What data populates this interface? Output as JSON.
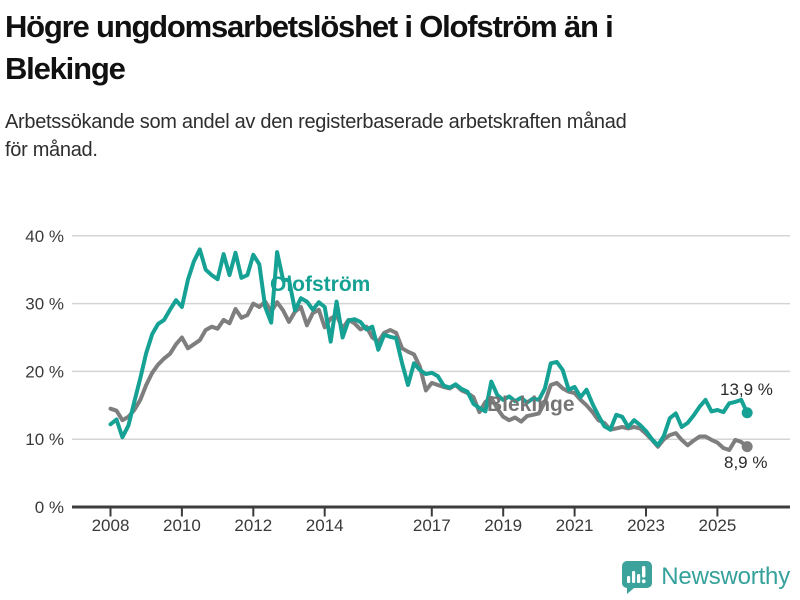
{
  "title": {
    "lines": [
      "Högre ungdomsarbetslöshet i Olofström än i",
      "Blekinge"
    ]
  },
  "subtitle": {
    "lines": [
      "Arbetssökande som andel av den registerbaserade arbetskraften månad",
      "för månad."
    ]
  },
  "footer": {
    "brand": "Newsworthy",
    "logo_icon": "newsworthy-speech-bubble-bar-chart-icon"
  },
  "colors": {
    "olofstrom_line": "#16A195",
    "blekinge_line": "#7E7E7E",
    "blekinge_label": "#757575",
    "grid": "#D4D4D4",
    "axis": "#3C3C3C",
    "tick_text": "#3A3A3A",
    "value_label_text": "#2B2B2B",
    "brand_teal": "#35A19B"
  },
  "chart_data": {
    "type": "line",
    "title": "Högre ungdomsarbetslöshet i Olofström än i Blekinge",
    "xlabel": "",
    "ylabel": "Arbetssökande som andel av den registerbaserade arbetskraften (%)",
    "x_start_year": 2008.0,
    "x_interval_years": 0.16667,
    "x_end_year": 2025.83,
    "ylim": [
      0,
      44
    ],
    "grid": "horizontal",
    "legend": "inline-series-labels",
    "y_ticks": [
      {
        "label": "0 %",
        "value": 0
      },
      {
        "label": "10 %",
        "value": 10
      },
      {
        "label": "20 %",
        "value": 20
      },
      {
        "label": "30 %",
        "value": 30
      },
      {
        "label": "40 %",
        "value": 40
      }
    ],
    "x_ticks": [
      {
        "label": "2008",
        "year": 2008
      },
      {
        "label": "2010",
        "year": 2010
      },
      {
        "label": "2012",
        "year": 2012
      },
      {
        "label": "2014",
        "year": 2014
      },
      {
        "label": "2017",
        "year": 2017
      },
      {
        "label": "2019",
        "year": 2019
      },
      {
        "label": "2021",
        "year": 2021
      },
      {
        "label": "2023",
        "year": 2023
      },
      {
        "label": "2025",
        "year": 2025
      }
    ],
    "series": [
      {
        "id": "olofstrom",
        "name": "Olofström",
        "color": "#16A195",
        "end_label": "13,9 %",
        "end_value": 13.9,
        "values": [
          12.2,
          12.9,
          10.3,
          12.0,
          15.5,
          19.0,
          22.7,
          25.5,
          27.0,
          27.6,
          29.1,
          30.5,
          29.5,
          33.5,
          36.2,
          38.0,
          35.0,
          34.2,
          33.6,
          37.3,
          34.2,
          37.5,
          33.8,
          34.2,
          37.2,
          35.8,
          29.5,
          27.2,
          37.6,
          33.5,
          33.5,
          29.0,
          30.8,
          30.3,
          29.1,
          30.2,
          29.5,
          24.4,
          30.3,
          25.0,
          27.5,
          27.7,
          27.3,
          26.2,
          26.6,
          23.2,
          25.4,
          25.1,
          24.9,
          21.2,
          18.0,
          21.2,
          20.2,
          19.6,
          19.8,
          19.3,
          17.9,
          17.6,
          18.1,
          17.4,
          17.0,
          15.2,
          14.6,
          14.1,
          18.5,
          16.5,
          15.8,
          16.3,
          15.6,
          16.1,
          15.4,
          16.0,
          15.8,
          17.5,
          21.2,
          21.4,
          20.2,
          17.3,
          17.7,
          16.2,
          17.3,
          15.2,
          13.5,
          11.9,
          11.4,
          13.6,
          13.3,
          11.8,
          12.8,
          12.1,
          11.2,
          10.0,
          9.1,
          10.5,
          13.1,
          13.8,
          11.8,
          12.4,
          13.5,
          14.8,
          15.8,
          14.1,
          14.3,
          14.0,
          15.3,
          15.5,
          15.8,
          13.9
        ]
      },
      {
        "id": "blekinge",
        "name": "Blekinge",
        "color": "#7E7E7E",
        "end_label": "8,9 %",
        "end_value": 8.9,
        "values": [
          14.5,
          14.2,
          12.8,
          13.3,
          14.3,
          15.8,
          18.0,
          19.8,
          21.0,
          21.9,
          22.6,
          24.0,
          25.0,
          23.4,
          24.0,
          24.6,
          26.1,
          26.6,
          26.3,
          27.6,
          27.1,
          29.2,
          27.9,
          28.3,
          30.0,
          29.5,
          30.3,
          28.8,
          30.2,
          29.0,
          27.3,
          28.8,
          29.5,
          26.8,
          28.6,
          29.1,
          26.5,
          27.8,
          28.3,
          26.3,
          27.6,
          27.1,
          26.2,
          26.6,
          25.0,
          24.4,
          25.7,
          26.1,
          25.7,
          23.4,
          22.9,
          22.5,
          20.7,
          17.2,
          18.3,
          18.0,
          17.7,
          17.5,
          18.0,
          17.2,
          16.8,
          16.2,
          14.0,
          15.5,
          16.1,
          14.5,
          13.3,
          12.8,
          13.2,
          12.6,
          13.4,
          13.6,
          13.8,
          15.5,
          18.0,
          18.3,
          17.5,
          17.0,
          16.8,
          15.8,
          15.0,
          14.0,
          12.8,
          12.4,
          11.4,
          11.6,
          11.8,
          11.6,
          11.8,
          11.6,
          10.8,
          9.9,
          8.9,
          10.0,
          10.6,
          10.9,
          9.9,
          9.1,
          9.8,
          10.4,
          10.4,
          9.9,
          9.5,
          8.7,
          8.4,
          9.9,
          9.6,
          8.9
        ]
      }
    ]
  }
}
